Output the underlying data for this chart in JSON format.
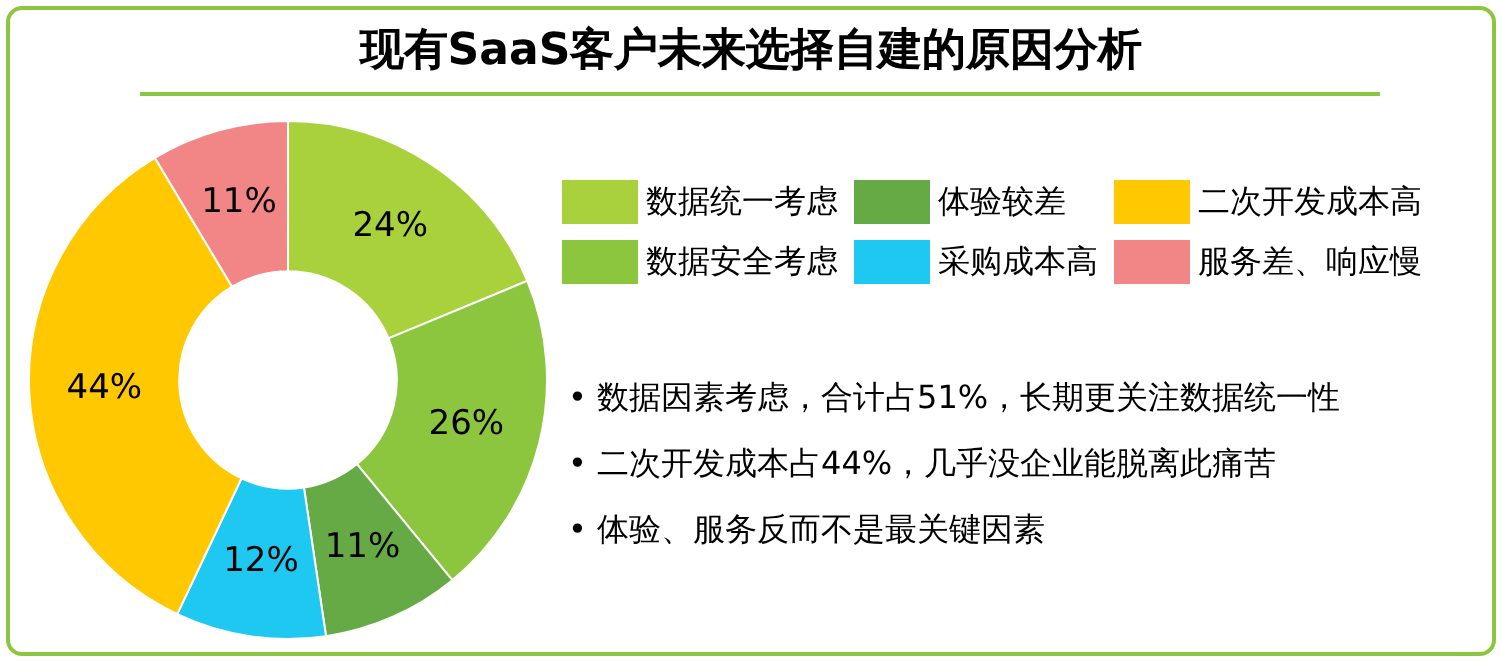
{
  "chart_data": {
    "type": "donut",
    "title": "现有SaaS客户未来选择自建的原因分析",
    "categories": [
      "数据统一考虑",
      "数据安全考虑",
      "体验较差",
      "采购成本高",
      "二次开发成本高",
      "服务差、响应慢"
    ],
    "values": [
      24,
      26,
      11,
      12,
      44,
      11
    ],
    "colors": [
      "#a9d13c",
      "#8cc63f",
      "#66aa45",
      "#1ec8f0",
      "#ffc800",
      "#f28585"
    ],
    "value_labels": [
      "24%",
      "26%",
      "11%",
      "12%",
      "44%",
      "11%"
    ],
    "legend": "top right",
    "annotations": [
      "• 数据因素考虑，合计占51%，长期更关注数据统一性",
      "• 二次开发成本占44%，几乎没企业能脱离此痛苦",
      "• 体验、服务反而不是最关键因素"
    ]
  }
}
